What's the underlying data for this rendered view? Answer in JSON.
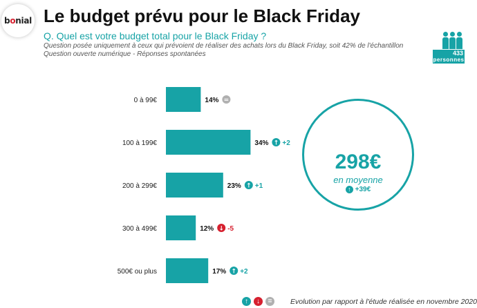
{
  "brand": {
    "logo_pre": "b",
    "logo_o": "o",
    "logo_post": "nial"
  },
  "header": {
    "title": "Le budget prévu pour le Black Friday",
    "question": "Q. Quel est votre budget total pour le Black Friday ?",
    "note1": "Question posée uniquement à ceux qui prévoient de réaliser des achats lors du Black Friday, soit 42% de l'échantillon",
    "note2": "Question ouverte numérique - Réponses spontanées"
  },
  "sample": {
    "count": "433",
    "label": "personnes"
  },
  "colors": {
    "accent": "#17a3a6",
    "up": "#17a3a6",
    "down": "#d6202f",
    "equal": "#b0b0b0"
  },
  "chart_data": {
    "type": "bar",
    "orientation": "horizontal",
    "categories": [
      "0 à 99€",
      "100 à 199€",
      "200 à 299€",
      "300 à 499€",
      "500€ ou plus"
    ],
    "values": [
      14,
      34,
      23,
      12,
      17
    ],
    "value_labels": [
      "14%",
      "34%",
      "23%",
      "12%",
      "17%"
    ],
    "deltas": [
      {
        "direction": "equal",
        "text": ""
      },
      {
        "direction": "up",
        "text": "+2"
      },
      {
        "direction": "up",
        "text": "+1"
      },
      {
        "direction": "down",
        "text": "-5"
      },
      {
        "direction": "up",
        "text": "+2"
      }
    ],
    "xlim": [
      0,
      36
    ]
  },
  "average": {
    "value": "298€",
    "label": "en moyenne",
    "delta": "+39€"
  },
  "footer": {
    "note": "Evolution par rapport à l'étude réalisée en novembre 2020"
  }
}
